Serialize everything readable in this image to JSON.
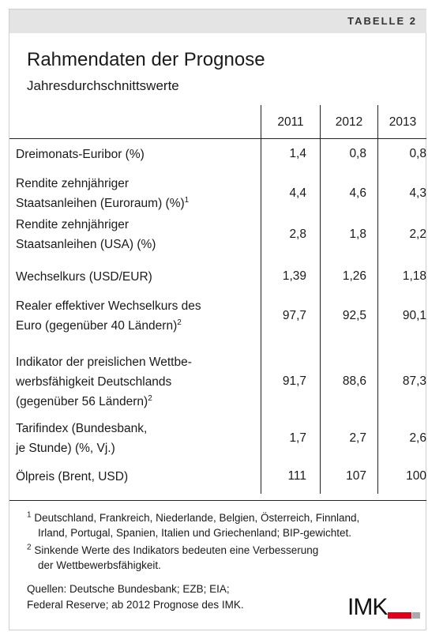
{
  "header": {
    "tag": "TABELLE 2",
    "title": "Rahmendaten der Prognose",
    "subtitle": "Jahresdurchschnittswerte"
  },
  "table": {
    "columns": [
      "2011",
      "2012",
      "2013"
    ],
    "rows": [
      {
        "label": [
          "Dreimonats-Euribor (%)"
        ],
        "values": [
          "1,4",
          "0,8",
          "0,8"
        ]
      },
      {
        "label": [
          "Rendite zehnjähriger",
          "Staatsanleihen (Euroraum) (%)"
        ],
        "note": "1",
        "values": [
          "4,4",
          "4,6",
          "4,3"
        ]
      },
      {
        "label": [
          "Rendite zehnjähriger",
          "Staatsanleihen (USA) (%)"
        ],
        "values": [
          "2,8",
          "1,8",
          "2,2"
        ]
      },
      {
        "label": [
          "Wechselkurs (USD/EUR)"
        ],
        "values": [
          "1,39",
          "1,26",
          "1,18"
        ]
      },
      {
        "label": [
          "Realer effektiver Wechselkurs des",
          "Euro (gegenüber 40 Ländern)"
        ],
        "note": "2",
        "values": [
          "97,7",
          "92,5",
          "90,1"
        ]
      },
      {
        "label": [
          "Indikator der preislichen Wettbe-",
          "werbsfähigkeit Deutschlands",
          "(gegenüber 56 Ländern)"
        ],
        "note": "2",
        "values": [
          "91,7",
          "88,6",
          "87,3"
        ]
      },
      {
        "label": [
          "Tarifindex (Bundesbank,",
          "je Stunde) (%, Vj.)"
        ],
        "values": [
          "1,7",
          "2,7",
          "2,6"
        ]
      },
      {
        "label": [
          "Ölpreis (Brent, USD)"
        ],
        "values": [
          "111",
          "107",
          "100"
        ]
      }
    ]
  },
  "footnotes": [
    {
      "mark": "1",
      "lines": [
        "Deutschland, Frankreich, Niederlande, Belgien, Österreich, Finnland,",
        "Irland, Portugal, Spanien, Italien und Griechenland; BIP-gewichtet."
      ]
    },
    {
      "mark": "2",
      "lines": [
        "Sinkende Werte des Indikators bedeuten eine Verbesserung",
        "der Wettbewerbsfähigkeit."
      ]
    }
  ],
  "sources": [
    "Quellen: Deutsche Bundesbank; EZB; EIA;",
    "Federal Reserve; ab 2012 Prognose des IMK."
  ],
  "logo": "IMK"
}
